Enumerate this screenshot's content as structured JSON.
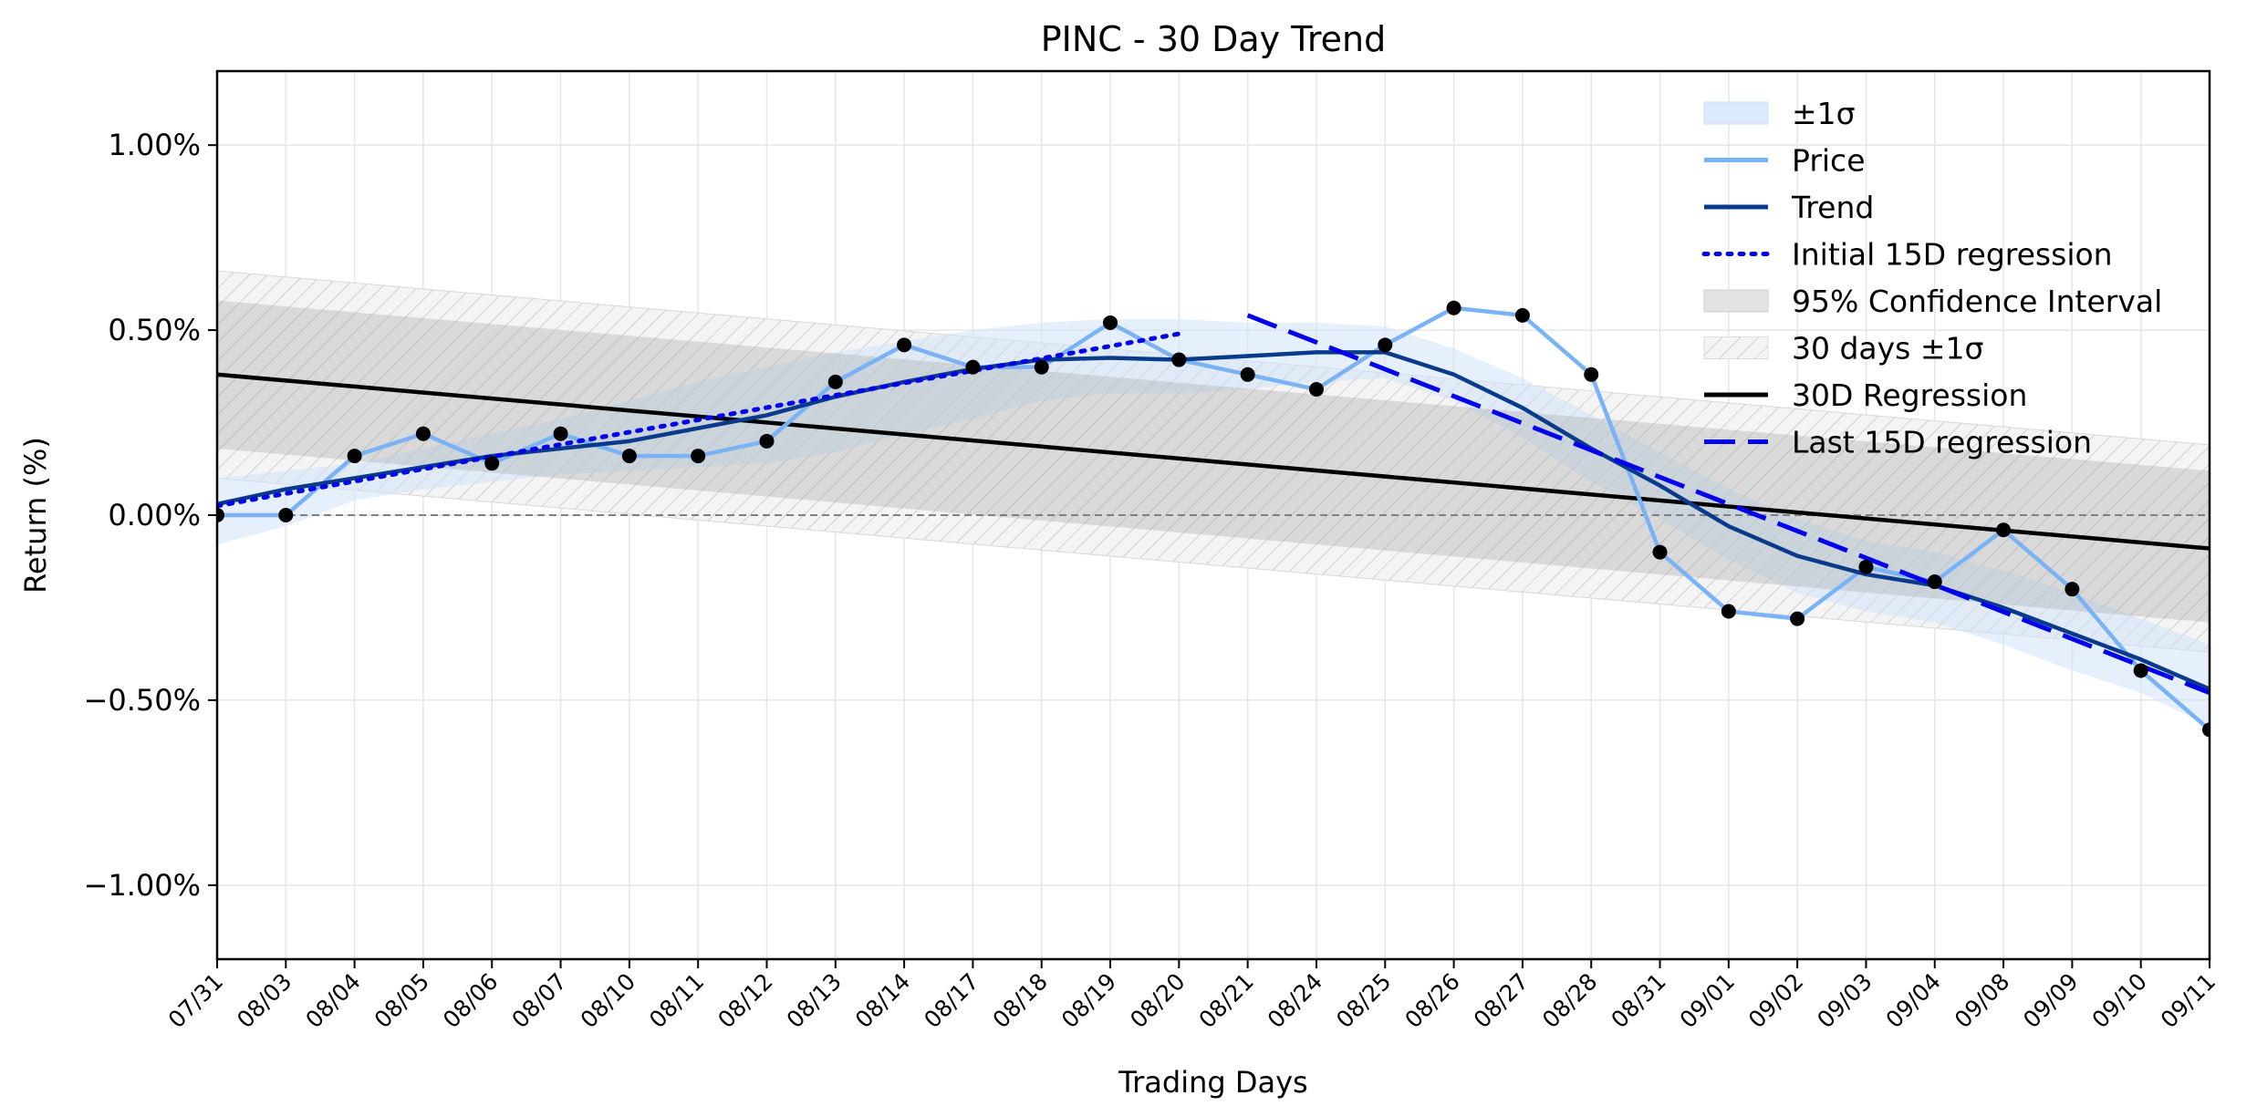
{
  "chart_data": {
    "type": "line",
    "title": "PINC - 30 Day Trend",
    "xlabel": "Trading Days",
    "ylabel": "Return (%)",
    "ylim": [
      -1.2,
      1.2
    ],
    "yticks": [
      1.0,
      0.5,
      0.0,
      -0.5,
      -1.0
    ],
    "ytick_labels": [
      "1.00%",
      "0.50%",
      "0.00%",
      "−0.50%",
      "−1.00%"
    ],
    "grid": true,
    "legend_position": "top-right",
    "categories": [
      "07/31",
      "08/03",
      "08/04",
      "08/05",
      "08/06",
      "08/07",
      "08/10",
      "08/11",
      "08/12",
      "08/13",
      "08/14",
      "08/17",
      "08/18",
      "08/19",
      "08/20",
      "08/21",
      "08/24",
      "08/25",
      "08/26",
      "08/27",
      "08/28",
      "08/31",
      "09/01",
      "09/02",
      "09/03",
      "09/04",
      "09/08",
      "09/09",
      "09/10",
      "09/11"
    ],
    "series": [
      {
        "name": "Price",
        "color": "#7ab3f5",
        "values": [
          0.0,
          0.0,
          0.16,
          0.22,
          0.14,
          0.22,
          0.16,
          0.16,
          0.2,
          0.36,
          0.46,
          0.4,
          0.4,
          0.52,
          0.42,
          0.38,
          0.34,
          0.46,
          0.56,
          0.54,
          0.38,
          -0.1,
          -0.26,
          -0.28,
          -0.14,
          -0.18,
          -0.04,
          -0.2,
          -0.42,
          -0.58
        ]
      },
      {
        "name": "Trend",
        "color": "#0a3a8c",
        "values": [
          0.03,
          0.07,
          0.1,
          0.13,
          0.16,
          0.18,
          0.2,
          0.235,
          0.27,
          0.32,
          0.36,
          0.395,
          0.42,
          0.425,
          0.42,
          0.43,
          0.44,
          0.44,
          0.38,
          0.29,
          0.18,
          0.08,
          -0.03,
          -0.11,
          -0.16,
          -0.19,
          -0.25,
          -0.32,
          -0.39,
          -0.47
        ]
      },
      {
        "name": "Initial 15D regression",
        "color": "#0000ee",
        "style": "dotted",
        "start_index": 0,
        "end_index": 14,
        "start_value": 0.025,
        "end_value": 0.49
      },
      {
        "name": "Last 15D regression",
        "color": "#0000ee",
        "style": "dashed",
        "start_index": 15,
        "end_index": 29,
        "start_value": 0.54,
        "end_value": -0.48
      },
      {
        "name": "30D Regression",
        "color": "#000000",
        "start_index": 0,
        "end_index": 29,
        "start_value": 0.38,
        "end_value": -0.09
      }
    ],
    "bands": [
      {
        "name": "±1σ",
        "color": "#dbeafc",
        "upper": [
          0.1,
          0.12,
          0.14,
          0.18,
          0.22,
          0.26,
          0.31,
          0.36,
          0.4,
          0.44,
          0.47,
          0.5,
          0.52,
          0.53,
          0.53,
          0.52,
          0.52,
          0.51,
          0.45,
          0.37,
          0.27,
          0.17,
          0.07,
          -0.01,
          -0.07,
          -0.1,
          -0.15,
          -0.21,
          -0.28,
          -0.35
        ],
        "lower": [
          -0.08,
          -0.03,
          0.04,
          0.07,
          0.09,
          0.11,
          0.12,
          0.13,
          0.14,
          0.17,
          0.22,
          0.26,
          0.31,
          0.33,
          0.33,
          0.34,
          0.36,
          0.37,
          0.31,
          0.21,
          0.09,
          -0.01,
          -0.12,
          -0.21,
          -0.26,
          -0.29,
          -0.35,
          -0.42,
          -0.48,
          -0.57
        ]
      },
      {
        "name": "95% Confidence Interval",
        "color": "#c8c8c8",
        "upper_start": 0.58,
        "upper_end": 0.12,
        "lower_start": 0.18,
        "lower_end": -0.29
      },
      {
        "name": "30 days ±1σ",
        "color": "#eeeeee",
        "hatch": true,
        "upper_start": 0.66,
        "upper_end": 0.19,
        "lower_start": 0.1,
        "lower_end": -0.37
      }
    ],
    "points": {
      "color": "#000000",
      "series": "Price"
    },
    "reference_line": {
      "y": 0.0,
      "style": "dashed",
      "color": "#808080"
    },
    "legend": [
      "±1σ",
      "Price",
      "Trend",
      "Initial 15D regression",
      "95% Confidence Interval",
      "30 days ±1σ",
      "30D Regression",
      "Last 15D regression"
    ]
  }
}
